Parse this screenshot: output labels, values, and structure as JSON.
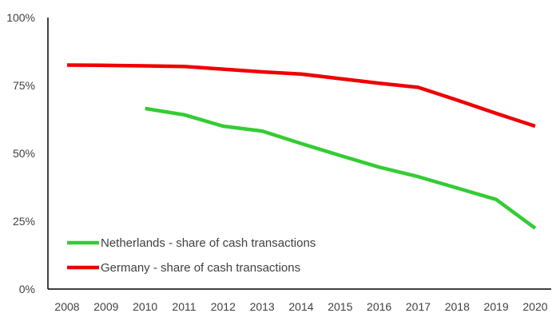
{
  "chart_data": {
    "type": "line",
    "title": "",
    "xlabel": "",
    "ylabel": "",
    "x": [
      2008,
      2009,
      2010,
      2011,
      2012,
      2013,
      2014,
      2015,
      2016,
      2017,
      2018,
      2019,
      2020
    ],
    "x_tick_labels": [
      "2008",
      "2009",
      "2010",
      "2011",
      "2012",
      "2013",
      "2014",
      "2015",
      "2016",
      "2017",
      "2018",
      "2019",
      "2020"
    ],
    "ylim": [
      0,
      100
    ],
    "y_ticks": [
      0,
      25,
      50,
      75,
      100
    ],
    "y_tick_labels": [
      "0%",
      "25%",
      "50%",
      "75%",
      "100%"
    ],
    "grid": false,
    "legend_position": "bottom-left",
    "series": [
      {
        "name": "Netherlands - share of cash transactions",
        "color": "#33cc33",
        "values": [
          null,
          null,
          66.5,
          64.2,
          60.0,
          58.2,
          53.6,
          49.2,
          44.9,
          41.4,
          37.2,
          33.0,
          22.4
        ]
      },
      {
        "name": "Germany - share of cash transactions",
        "color": "#ee0000",
        "values": [
          82.5,
          82.4,
          82.2,
          82.0,
          81.0,
          80.0,
          79.2,
          77.5,
          75.8,
          74.3,
          69.6,
          64.7,
          60.0
        ]
      }
    ]
  }
}
